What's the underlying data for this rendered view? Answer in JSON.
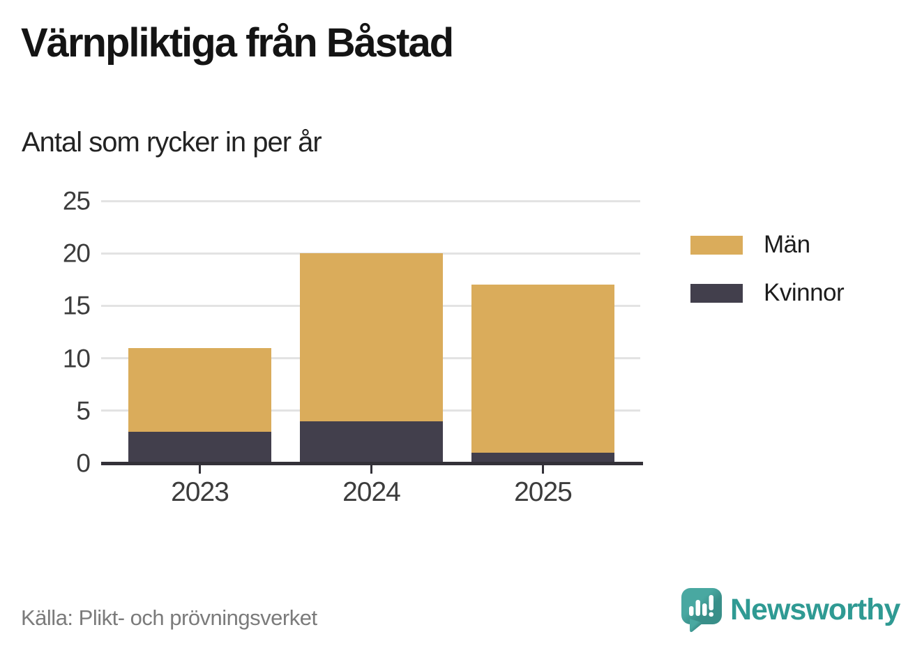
{
  "header": {
    "title": "Värnpliktiga från Båstad",
    "subtitle": "Antal som rycker in per år"
  },
  "chart_data": {
    "type": "bar",
    "stacked": true,
    "title": "Värnpliktiga från Båstad",
    "subtitle": "Antal som rycker in per år",
    "categories": [
      "2023",
      "2024",
      "2025"
    ],
    "series": [
      {
        "name": "Män",
        "values": [
          8,
          16,
          16
        ],
        "color": "#DAAC5B"
      },
      {
        "name": "Kvinnor",
        "values": [
          3,
          4,
          1
        ],
        "color": "#423F4C"
      }
    ],
    "stack_order_bottom_to_top": [
      "Kvinnor",
      "Män"
    ],
    "totals": [
      11,
      20,
      17
    ],
    "ylim": [
      0,
      25
    ],
    "yticks": [
      0,
      5,
      10,
      15,
      20,
      25
    ],
    "xlabel": "",
    "ylabel": "",
    "grid": true,
    "legend_position": "right"
  },
  "legend": {
    "items": [
      {
        "label": "Män",
        "color": "#DAAC5B"
      },
      {
        "label": "Kvinnor",
        "color": "#423F4C"
      }
    ]
  },
  "footer": {
    "source": "Källa: Plikt- och prövningsverket",
    "brand": "Newsworthy"
  },
  "colors": {
    "brand_teal": "#2F9A93",
    "icon_teal": "#41A09A",
    "grid": "#E3E3E3",
    "axis": "#333138",
    "text_dark": "#3C3C3C",
    "text_muted": "#7B7B7B"
  }
}
